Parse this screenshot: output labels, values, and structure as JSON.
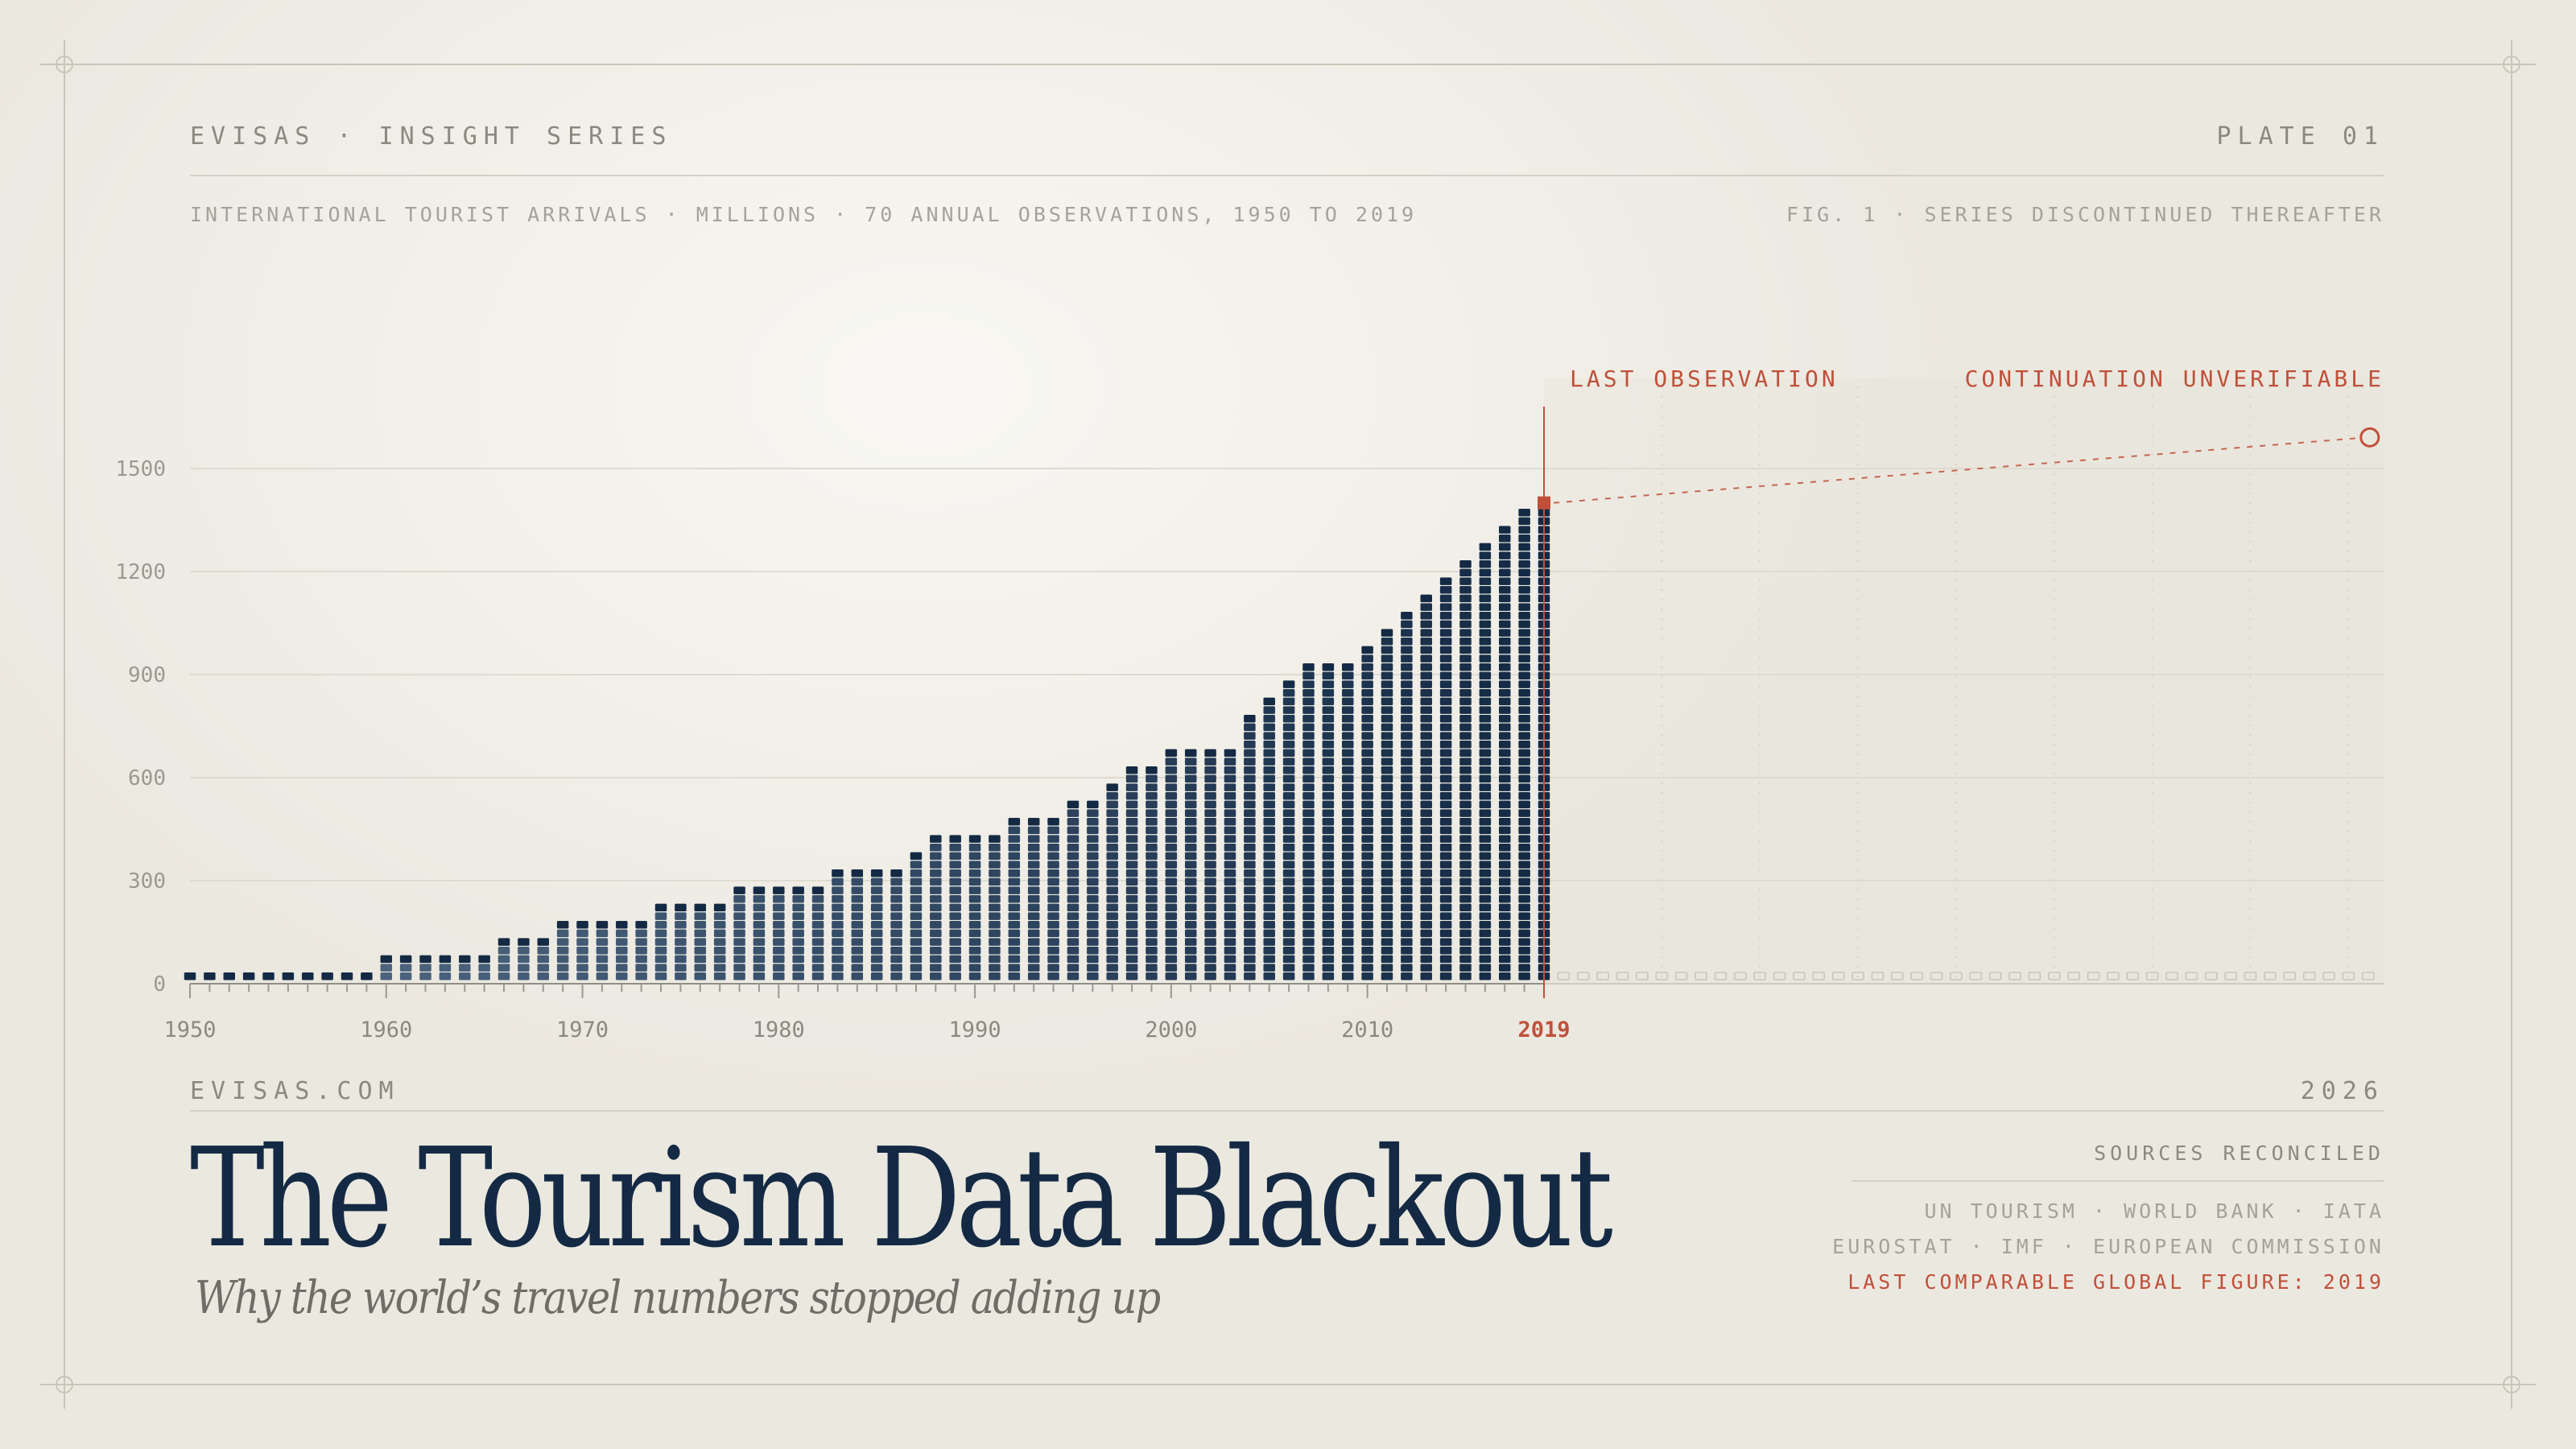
{
  "header": {
    "brand": "EVISAS · INSIGHT SERIES",
    "plate": "PLATE 01",
    "subtitle_left": "INTERNATIONAL TOURIST ARRIVALS · MILLIONS · 70 ANNUAL OBSERVATIONS, 1950 TO 2019",
    "subtitle_right": "FIG. 1 · SERIES DISCONTINUED THEREAFTER"
  },
  "annotations": {
    "last_observation": "LAST OBSERVATION",
    "continuation": "CONTINUATION UNVERIFIABLE"
  },
  "footer": {
    "site": "EVISAS.COM",
    "year": "2026",
    "title": "The Tourism Data Blackout",
    "subtitle": "Why the world’s travel numbers stopped adding up",
    "sources_heading": "SOURCES RECONCILED",
    "sources_line1": "UN TOURISM · WORLD BANK · IATA",
    "sources_line2": "EUROSTAT · IMF · EUROPEAN COMMISSION",
    "sources_note": "LAST COMPARABLE GLOBAL FIGURE: 2019"
  },
  "colors": {
    "ink": "#142a44",
    "accent": "#c0503a",
    "muted": "#8a8a80",
    "background": "#eeebe3"
  },
  "chart_data": {
    "type": "bar",
    "style": "stacked-dot-columns",
    "ylim": [
      0,
      1500
    ],
    "yticks": [
      0,
      300,
      600,
      900,
      1200,
      1500
    ],
    "xticks": [
      "1950",
      "1960",
      "1970",
      "1980",
      "1990",
      "2000",
      "2010",
      "2019"
    ],
    "x": [
      1950,
      1951,
      1952,
      1953,
      1954,
      1955,
      1956,
      1957,
      1958,
      1959,
      1960,
      1961,
      1962,
      1963,
      1964,
      1965,
      1966,
      1967,
      1968,
      1969,
      1970,
      1971,
      1972,
      1973,
      1974,
      1975,
      1976,
      1977,
      1978,
      1979,
      1980,
      1981,
      1982,
      1983,
      1984,
      1985,
      1986,
      1987,
      1988,
      1989,
      1990,
      1991,
      1992,
      1993,
      1994,
      1995,
      1996,
      1997,
      1998,
      1999,
      2000,
      2001,
      2002,
      2003,
      2004,
      2005,
      2006,
      2007,
      2008,
      2009,
      2010,
      2011,
      2012,
      2013,
      2014,
      2015,
      2016,
      2017,
      2018,
      2019
    ],
    "values": [
      25,
      25,
      25,
      25,
      25,
      25,
      25,
      25,
      25,
      25,
      75,
      75,
      75,
      75,
      75,
      75,
      125,
      125,
      125,
      175,
      175,
      175,
      175,
      175,
      225,
      225,
      225,
      225,
      275,
      275,
      275,
      275,
      275,
      325,
      325,
      325,
      325,
      375,
      425,
      425,
      425,
      425,
      475,
      475,
      475,
      525,
      525,
      575,
      625,
      625,
      675,
      675,
      675,
      675,
      775,
      825,
      875,
      925,
      925,
      925,
      975,
      1025,
      1075,
      1125,
      1175,
      1225,
      1275,
      1325,
      1375,
      1400
    ],
    "last_observation": {
      "x": 2019,
      "y": 1400
    },
    "projection": {
      "x_end": 2061,
      "y_end": 1600,
      "style": "dashed"
    },
    "placeholder_years": [
      2020,
      2061
    ]
  }
}
